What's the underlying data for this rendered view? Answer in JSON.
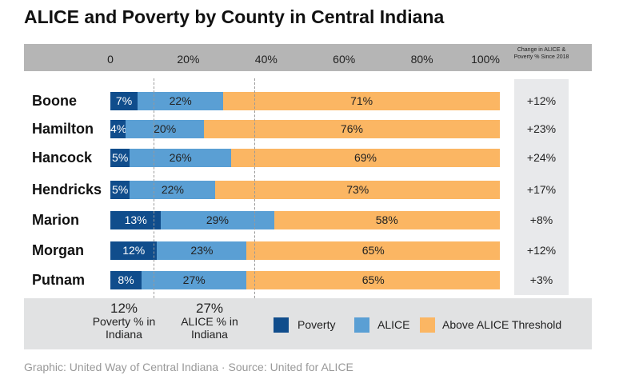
{
  "chart_data": {
    "type": "bar",
    "stacked": true,
    "orientation": "horizontal",
    "title": "ALICE and Poverty by County in Central Indiana",
    "xlim": [
      0,
      100
    ],
    "tick_labels": [
      "0",
      "20%",
      "40%",
      "60%",
      "80%",
      "100%"
    ],
    "categories": [
      "Boone",
      "Hamilton",
      "Hancock",
      "Hendricks",
      "Marion",
      "Morgan",
      "Putnam"
    ],
    "series": [
      {
        "name": "Poverty",
        "color": "#104d8c",
        "values": [
          7,
          4,
          5,
          5,
          13,
          12,
          8
        ]
      },
      {
        "name": "ALICE",
        "color": "#5a9fd4",
        "values": [
          22,
          20,
          26,
          22,
          29,
          23,
          27
        ]
      },
      {
        "name": "Above ALICE Threshold",
        "color": "#fbb663",
        "values": [
          71,
          76,
          69,
          73,
          58,
          65,
          65
        ]
      }
    ],
    "change_header": "Change in ALICE & Poverty % Since 2018",
    "change": [
      "+12%",
      "+23%",
      "+24%",
      "+17%",
      "+8%",
      "+12%",
      "+3%"
    ],
    "reference": {
      "poverty": {
        "value": 12,
        "label": "12%",
        "caption": "Poverty % in Indiana"
      },
      "alice": {
        "value": 27,
        "label": "27%",
        "caption": "ALICE % in Indiana"
      }
    },
    "legend": "bottom",
    "source": "Graphic: United Way of Central Indiana · Source: United for ALICE"
  }
}
